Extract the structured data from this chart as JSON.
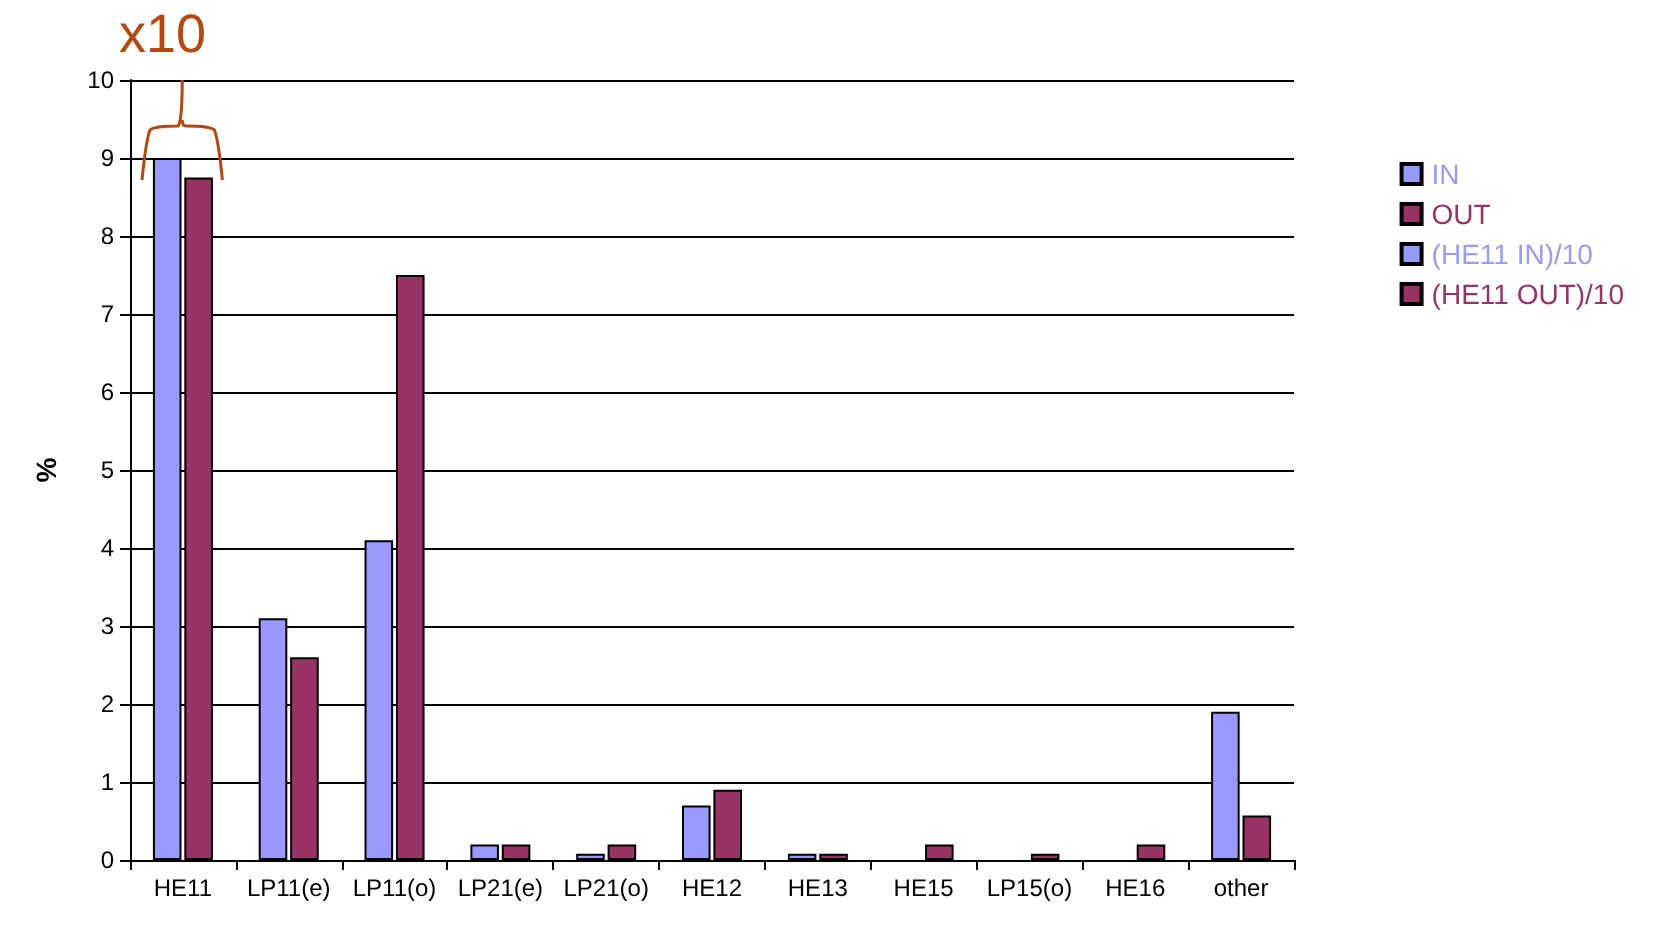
{
  "chart_data": {
    "type": "bar",
    "ylabel": "%",
    "categories": [
      "HE11",
      "LP11(e)",
      "LP11(o)",
      "LP21(e)",
      "LP21(o)",
      "HE12",
      "HE13",
      "HE15",
      "LP15(o)",
      "HE16",
      "other"
    ],
    "series": [
      {
        "name": "IN",
        "color": "#9999ff",
        "values": [
          null,
          3.1,
          4.1,
          0.2,
          0.08,
          0.7,
          0.08,
          null,
          null,
          null,
          1.9
        ]
      },
      {
        "name": "OUT",
        "color": "#993366",
        "values": [
          null,
          2.6,
          7.5,
          0.2,
          0.2,
          0.9,
          0.08,
          0.2,
          0.08,
          0.2,
          0.57
        ]
      },
      {
        "name": "(HE11 IN)/10",
        "color": "#9999ff",
        "values": [
          9.0,
          null,
          null,
          null,
          null,
          null,
          null,
          null,
          null,
          null,
          null
        ]
      },
      {
        "name": "(HE11 OUT)/10",
        "color": "#993366",
        "values": [
          8.75,
          null,
          null,
          null,
          null,
          null,
          null,
          null,
          null,
          null,
          null
        ]
      }
    ],
    "ylim": [
      0,
      10
    ],
    "yticks": [
      0,
      1,
      2,
      3,
      4,
      5,
      6,
      7,
      8,
      9,
      10
    ],
    "grid": "y",
    "legend": "right",
    "annotations": [
      "x10"
    ]
  }
}
